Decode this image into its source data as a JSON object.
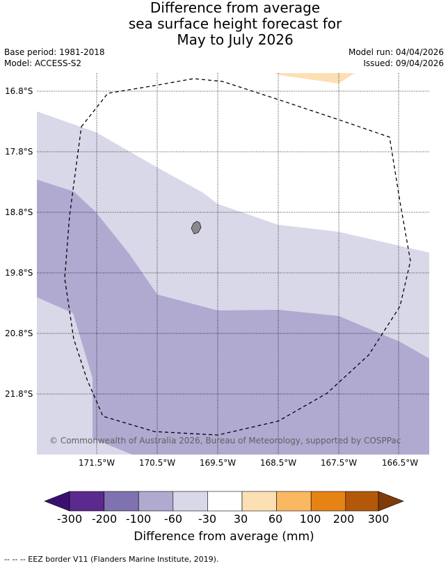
{
  "title": {
    "line1": "Difference from average",
    "line2": "sea surface height forecast for",
    "line3": "May to July 2026"
  },
  "info": {
    "base_period": "Base period: 1981-2018",
    "model": "Model: ACCESS-S2",
    "model_run": "Model run: 04/04/2026",
    "issued": "Issued: 09/04/2026"
  },
  "map": {
    "lat_labels": [
      "16.8°S",
      "17.8°S",
      "18.8°S",
      "19.8°S",
      "20.8°S",
      "21.8°S"
    ],
    "lon_labels": [
      "171.5°W",
      "170.5°W",
      "169.5°W",
      "168.5°W",
      "167.5°W",
      "166.5°W"
    ],
    "copyright": "© Commonwealth of Australia 2026, Bureau of Meteorology, supported by COSPPac",
    "colors": {
      "light_lavender": "#d8d8e9",
      "lavender": "#b0aad1",
      "light_orange": "#fddfb4",
      "island": "#8a8790"
    }
  },
  "colorbar": {
    "labels": [
      "-300",
      "-200",
      "-100",
      "-60",
      "-30",
      "30",
      "60",
      "100",
      "200",
      "300"
    ],
    "colors": [
      "#3b0f6f",
      "#5b2a8f",
      "#8072b1",
      "#b0aad1",
      "#d8d8e9",
      "#ffffff",
      "#fddfb4",
      "#fbb862",
      "#e58315",
      "#b3580a",
      "#7f3b08"
    ],
    "title": "Difference from average (mm)"
  },
  "footnote": "--  --  -- EEZ border V11 (Flanders Marine Institute, 2019)."
}
